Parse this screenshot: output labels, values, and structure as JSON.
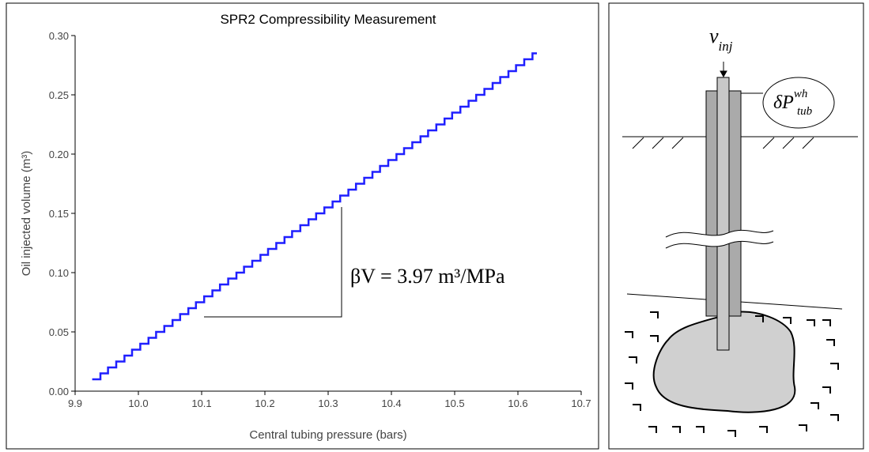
{
  "chart_data": {
    "type": "line",
    "title": "SPR2 Compressibility Measurement",
    "x_label": "Central tubing pressure (bars)",
    "y_label": "Oil injected volume (m³)",
    "annotation": "βV = 3.97 m³/MPa",
    "step": true,
    "color": "#1f1fff",
    "x": [
      9.927,
      9.94,
      9.952,
      9.965,
      9.978,
      9.99,
      10.003,
      10.016,
      10.028,
      10.041,
      10.054,
      10.066,
      10.079,
      10.091,
      10.104,
      10.117,
      10.129,
      10.142,
      10.155,
      10.167,
      10.18,
      10.193,
      10.205,
      10.218,
      10.231,
      10.243,
      10.256,
      10.269,
      10.281,
      10.294,
      10.307,
      10.319,
      10.332,
      10.344,
      10.357,
      10.37,
      10.382,
      10.395,
      10.408,
      10.42,
      10.433,
      10.446,
      10.458,
      10.471,
      10.484,
      10.496,
      10.509,
      10.522,
      10.534,
      10.547,
      10.56,
      10.572,
      10.585,
      10.597,
      10.61,
      10.623,
      10.63
    ],
    "values": [
      0.01,
      0.015,
      0.02,
      0.025,
      0.03,
      0.035,
      0.04,
      0.045,
      0.05,
      0.055,
      0.06,
      0.065,
      0.07,
      0.075,
      0.08,
      0.085,
      0.09,
      0.095,
      0.1,
      0.105,
      0.11,
      0.115,
      0.12,
      0.125,
      0.13,
      0.135,
      0.14,
      0.145,
      0.15,
      0.155,
      0.16,
      0.165,
      0.17,
      0.175,
      0.18,
      0.185,
      0.19,
      0.195,
      0.2,
      0.205,
      0.21,
      0.215,
      0.22,
      0.225,
      0.23,
      0.235,
      0.24,
      0.245,
      0.25,
      0.255,
      0.26,
      0.265,
      0.27,
      0.275,
      0.28,
      0.285,
      0.285
    ],
    "xlim": [
      9.9,
      10.7
    ],
    "xticks": [
      9.9,
      {
        "value": 10.0,
        "label": "10.0"
      },
      10.1,
      10.2,
      10.3,
      10.4,
      10.5,
      10.6,
      10.7
    ],
    "ylim": [
      0,
      0.3
    ],
    "yticks": [
      {
        "value": 0,
        "label": "0.00"
      },
      0.05,
      {
        "value": 0.1,
        "label": "0.10"
      },
      0.15,
      {
        "value": 0.2,
        "label": "0.20"
      },
      0.25,
      {
        "value": 0.3,
        "label": "0.30"
      }
    ]
  },
  "diagram": {
    "labels": [
      {
        "base": "v",
        "sub": "inj"
      },
      {
        "base": "δP",
        "sup": "wh",
        "sub": "tub"
      }
    ]
  }
}
